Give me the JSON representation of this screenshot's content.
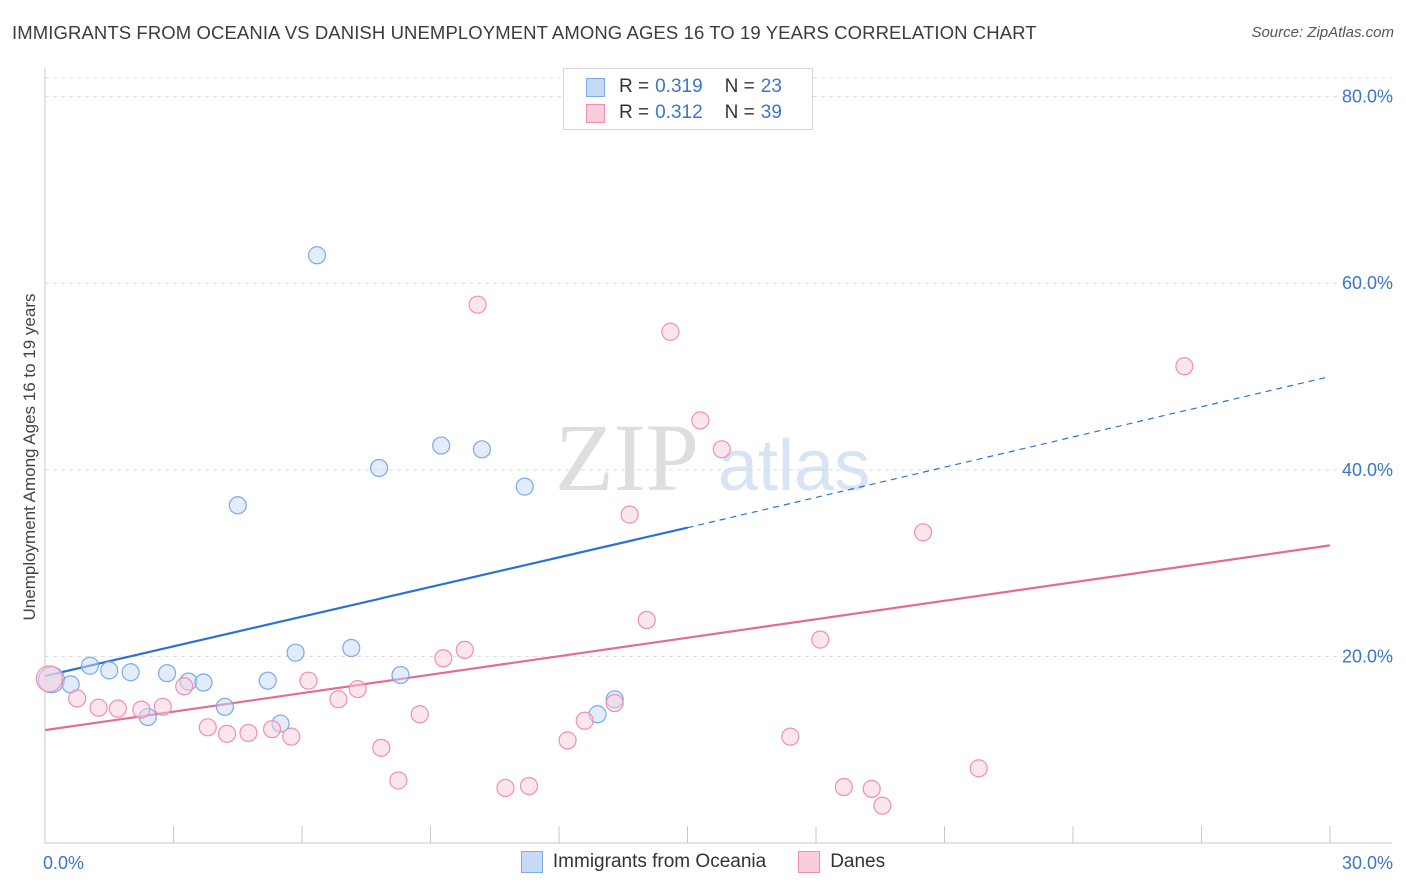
{
  "title": "IMMIGRANTS FROM OCEANIA VS DANISH UNEMPLOYMENT AMONG AGES 16 TO 19 YEARS CORRELATION CHART",
  "source": "Source: ZipAtlas.com",
  "watermark": {
    "zip": "ZIP",
    "atlas": "atlas"
  },
  "legend": {
    "r_label": "R =",
    "n_label": "N =",
    "series": [
      {
        "r": "0.319",
        "n": "23"
      },
      {
        "r": "0.312",
        "n": "39"
      }
    ]
  },
  "chart_data": {
    "type": "scatter",
    "title": "IMMIGRANTS FROM OCEANIA VS DANISH UNEMPLOYMENT AMONG AGES 16 TO 19 YEARS CORRELATION CHART",
    "xlabel": "",
    "ylabel": "Unemployment Among Ages 16 to 19 years",
    "xlim": [
      0,
      30
    ],
    "ylim": [
      0,
      82
    ],
    "x_tick_labels": [
      "0.0%",
      "30.0%"
    ],
    "y_ticks": [
      20,
      40,
      60,
      80
    ],
    "y_tick_labels": [
      "20.0%",
      "40.0%",
      "60.0%",
      "80.0%"
    ],
    "grid": true,
    "legend_position": "top-center",
    "series": [
      {
        "name": "Immigrants from Oceania",
        "color": "#7aaae8",
        "fill": "#c6daf5",
        "r": 0.319,
        "n": 23,
        "points": [
          [
            0.15,
            17.5
          ],
          [
            0.6,
            17.0
          ],
          [
            1.05,
            19.0
          ],
          [
            1.5,
            18.5
          ],
          [
            2.0,
            18.3
          ],
          [
            2.4,
            13.5
          ],
          [
            2.85,
            18.2
          ],
          [
            3.35,
            17.3
          ],
          [
            3.7,
            17.2
          ],
          [
            4.2,
            14.6
          ],
          [
            4.5,
            36.2
          ],
          [
            5.2,
            17.4
          ],
          [
            5.5,
            12.8
          ],
          [
            5.85,
            20.4
          ],
          [
            6.35,
            63.0
          ],
          [
            7.15,
            20.9
          ],
          [
            7.8,
            40.2
          ],
          [
            8.3,
            18.0
          ],
          [
            9.25,
            42.6
          ],
          [
            10.2,
            42.2
          ],
          [
            11.2,
            38.2
          ],
          [
            12.9,
            13.8
          ],
          [
            13.3,
            15.4
          ]
        ],
        "trend": {
          "x0": 0,
          "y0": 17.9,
          "x1": 15.0,
          "y1": 33.8,
          "x_dash_end": 30,
          "y_dash_end": 50.0
        }
      },
      {
        "name": "Danes",
        "color": "#f08fb0",
        "fill": "#f9cedc",
        "r": 0.312,
        "n": 39,
        "points": [
          [
            0.1,
            17.6
          ],
          [
            0.75,
            15.5
          ],
          [
            1.25,
            14.5
          ],
          [
            1.7,
            14.4
          ],
          [
            2.25,
            14.3
          ],
          [
            2.75,
            14.6
          ],
          [
            3.25,
            16.8
          ],
          [
            3.8,
            12.4
          ],
          [
            4.25,
            11.7
          ],
          [
            4.75,
            11.8
          ],
          [
            5.3,
            12.2
          ],
          [
            5.75,
            11.4
          ],
          [
            6.15,
            17.4
          ],
          [
            6.85,
            15.4
          ],
          [
            7.3,
            16.5
          ],
          [
            7.85,
            10.2
          ],
          [
            8.25,
            6.7
          ],
          [
            8.75,
            13.8
          ],
          [
            9.3,
            19.8
          ],
          [
            9.8,
            20.7
          ],
          [
            10.1,
            57.7
          ],
          [
            10.75,
            5.9
          ],
          [
            11.3,
            6.1
          ],
          [
            12.2,
            11.0
          ],
          [
            12.6,
            13.1
          ],
          [
            13.3,
            15.0
          ],
          [
            13.65,
            35.2
          ],
          [
            14.05,
            23.9
          ],
          [
            14.6,
            54.8
          ],
          [
            15.3,
            45.3
          ],
          [
            15.8,
            42.2
          ],
          [
            17.4,
            11.4
          ],
          [
            18.1,
            21.8
          ],
          [
            18.65,
            6.0
          ],
          [
            19.3,
            5.8
          ],
          [
            19.55,
            4.0
          ],
          [
            20.5,
            33.3
          ],
          [
            21.8,
            8.0
          ],
          [
            26.6,
            51.1
          ]
        ],
        "trend": {
          "x0": 0,
          "y0": 12.1,
          "x1": 30,
          "y1": 31.9
        }
      }
    ]
  }
}
